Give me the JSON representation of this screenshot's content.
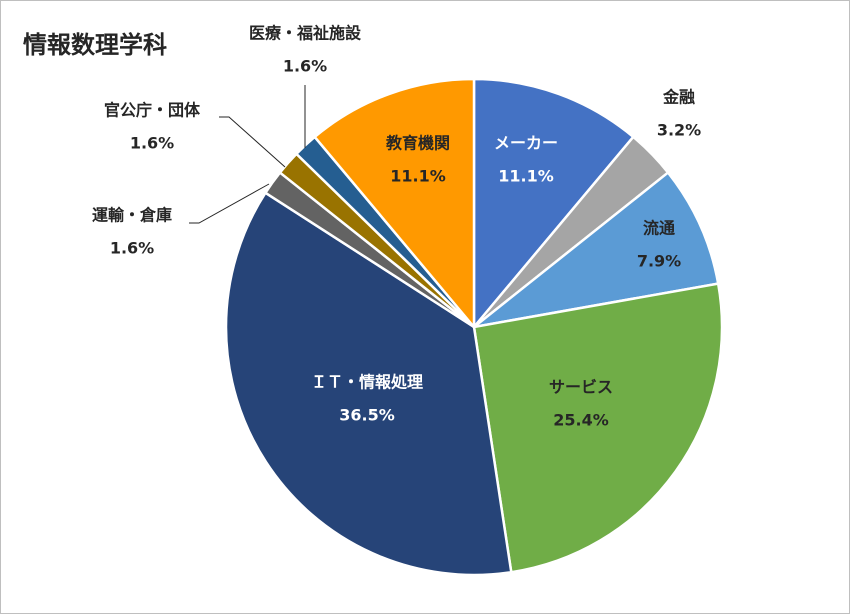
{
  "chart_data": {
    "type": "pie",
    "title": "情報数理学科",
    "start_angle_deg": 0,
    "direction": "clockwise",
    "slices": [
      {
        "label": "メーカー",
        "value_text": "11.1%",
        "value": 11.1,
        "color": "#4472c4"
      },
      {
        "label": "金融",
        "value_text": "3.2%",
        "value": 3.2,
        "color": "#a5a5a5"
      },
      {
        "label": "流通",
        "value_text": "7.9%",
        "value": 7.9,
        "color": "#5b9bd5"
      },
      {
        "label": "サービス",
        "value_text": "25.4%",
        "value": 25.4,
        "color": "#70ad47"
      },
      {
        "label": "ＩＴ・情報処理",
        "value_text": "36.5%",
        "value": 36.5,
        "color": "#264478"
      },
      {
        "label": "運輸・倉庫",
        "value_text": "1.6%",
        "value": 1.6,
        "color": "#636363"
      },
      {
        "label": "官公庁・団体",
        "value_text": "1.6%",
        "value": 1.6,
        "color": "#997300"
      },
      {
        "label": "医療・福祉施設",
        "value_text": "1.6%",
        "value": 1.6,
        "color": "#255e91"
      },
      {
        "label": "教育機関",
        "value_text": "11.1%",
        "value": 11.1,
        "color": "#ff9900"
      }
    ]
  }
}
